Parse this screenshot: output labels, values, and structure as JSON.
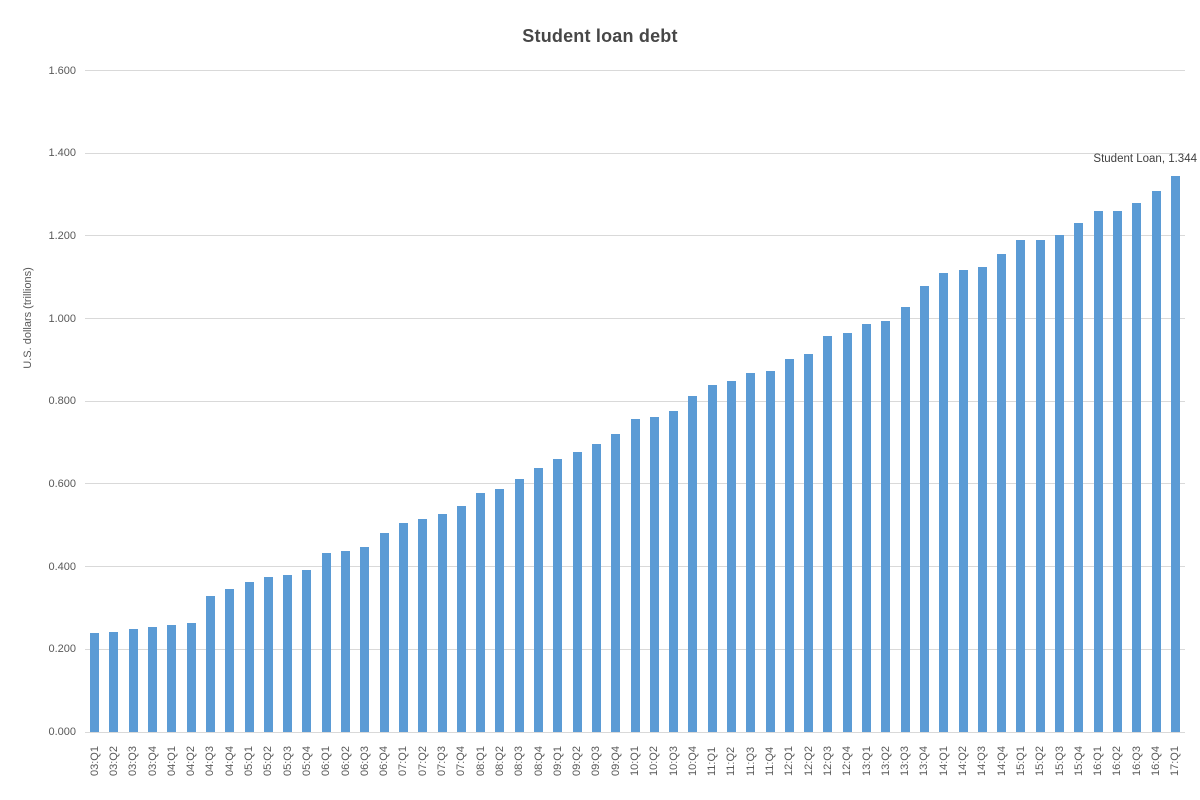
{
  "chart_data": {
    "type": "bar",
    "title": "Student loan debt",
    "xlabel": "",
    "ylabel": "U.S. dollars (trillions)",
    "ylim": [
      0,
      1.6
    ],
    "ytick_labels": [
      "0.000",
      "0.200",
      "0.400",
      "0.600",
      "0.800",
      "1.000",
      "1.200",
      "1.400",
      "1.600"
    ],
    "grid": true,
    "legend_position": "none",
    "annotation": "Student Loan, 1.344",
    "series_name": "Student Loan",
    "categories": [
      "03:Q1",
      "03:Q2",
      "03:Q3",
      "03:Q4",
      "04:Q1",
      "04:Q2",
      "04:Q3",
      "04:Q4",
      "05:Q1",
      "05:Q2",
      "05:Q3",
      "05:Q4",
      "06:Q1",
      "06:Q2",
      "06:Q3",
      "06:Q4",
      "07:Q1",
      "07:Q2",
      "07:Q3",
      "07:Q4",
      "08:Q1",
      "08:Q2",
      "08:Q3",
      "08:Q4",
      "09:Q1",
      "09:Q2",
      "09:Q3",
      "09:Q4",
      "10:Q1",
      "10:Q2",
      "10:Q3",
      "10:Q4",
      "11:Q1",
      "11:Q2",
      "11:Q3",
      "11:Q4",
      "12:Q1",
      "12:Q2",
      "12:Q3",
      "12:Q4",
      "13:Q1",
      "13:Q2",
      "13:Q3",
      "13:Q4",
      "14:Q1",
      "14:Q2",
      "14:Q3",
      "14:Q4",
      "15:Q1",
      "15:Q2",
      "15:Q3",
      "15:Q4",
      "16:Q1",
      "16:Q2",
      "16:Q3",
      "16:Q4",
      "17:Q1"
    ],
    "values": [
      0.24,
      0.243,
      0.249,
      0.253,
      0.26,
      0.263,
      0.33,
      0.346,
      0.362,
      0.374,
      0.38,
      0.391,
      0.434,
      0.437,
      0.447,
      0.481,
      0.505,
      0.515,
      0.527,
      0.547,
      0.579,
      0.588,
      0.611,
      0.638,
      0.661,
      0.677,
      0.696,
      0.722,
      0.757,
      0.761,
      0.776,
      0.812,
      0.839,
      0.849,
      0.868,
      0.873,
      0.903,
      0.914,
      0.957,
      0.965,
      0.986,
      0.994,
      1.027,
      1.079,
      1.11,
      1.118,
      1.124,
      1.155,
      1.19,
      1.19,
      1.203,
      1.23,
      1.261,
      1.259,
      1.279,
      1.309,
      1.344
    ]
  },
  "colors": {
    "bar": "#5b9bd5",
    "gridline": "#d9d9d9",
    "axis_text": "#595959",
    "title_text": "#474747",
    "annotation_text": "#404040",
    "background": "#ffffff"
  }
}
